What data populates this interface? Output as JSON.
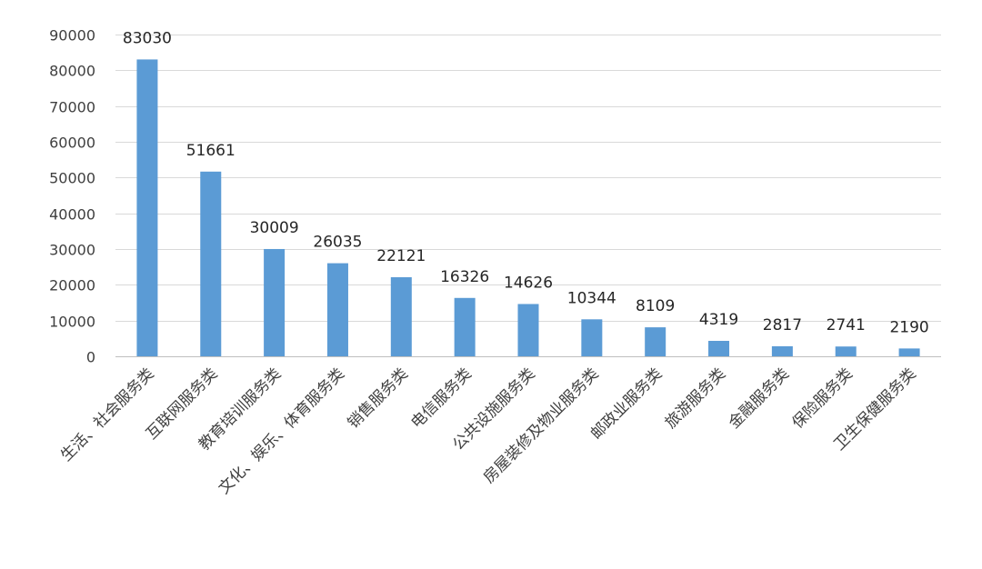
{
  "chart_data": {
    "type": "bar",
    "title": "",
    "xlabel": "",
    "ylabel": "",
    "ylim": [
      0,
      90000
    ],
    "yticks": [
      0,
      10000,
      20000,
      30000,
      40000,
      50000,
      60000,
      70000,
      80000,
      90000
    ],
    "grid": true,
    "legend": "none",
    "bar_color": "#5b9bd5",
    "categories": [
      "生活、社会服务类",
      "互联网服务类",
      "教育培训服务类",
      "文化、娱乐、体育服务类",
      "销售服务类",
      "电信服务类",
      "公共设施服务类",
      "房屋装修及物业服务类",
      "邮政业服务类",
      "旅游服务类",
      "金融服务类",
      "保险服务类",
      "卫生保健服务类"
    ],
    "values": [
      83030,
      51661,
      30009,
      26035,
      22121,
      16326,
      14626,
      10344,
      8109,
      4319,
      2817,
      2741,
      2190
    ]
  }
}
